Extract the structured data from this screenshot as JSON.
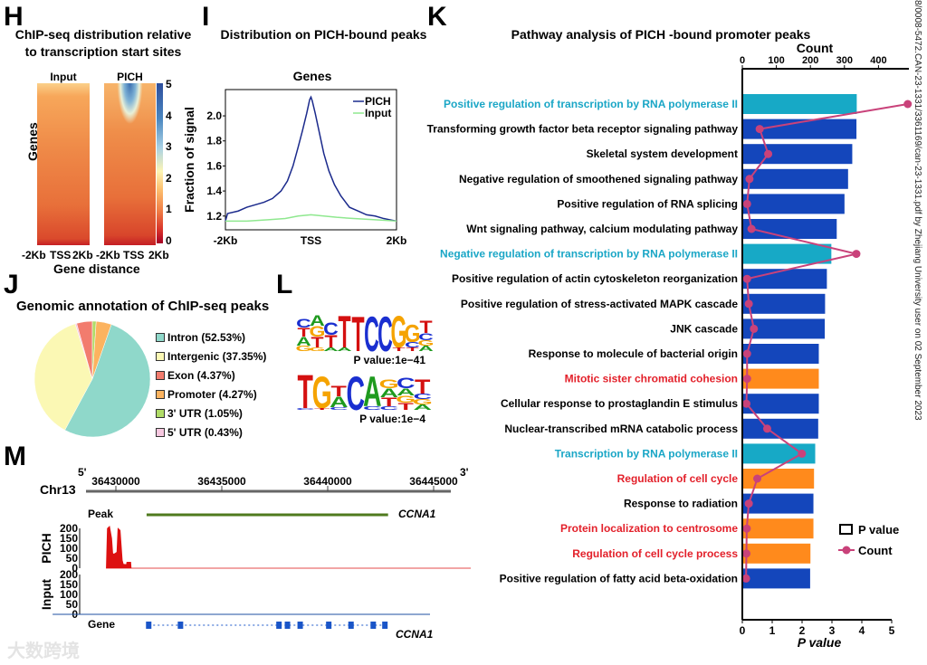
{
  "panels": {
    "H": "H",
    "I": "I",
    "J": "J",
    "K": "K",
    "L": "L",
    "M": "M"
  },
  "H": {
    "title1": "ChIP-seq distribution  relative",
    "title2": "to transcription start sites",
    "col_input": "Input",
    "col_pich": "PICH",
    "ylabel": "Genes",
    "xlabel": "Gene distance",
    "xticks": [
      "-2Kb",
      "TSS",
      "2Kb"
    ],
    "colorbar_ticks": [
      "5",
      "4",
      "3",
      "2",
      "1",
      "0"
    ]
  },
  "watermark": "8/0008-5472.CAN-23-1331/3361169/can-23-1331.pdf by Zhejiang University user on 02 September 2023",
  "logo_watermark": "大数跨境",
  "J": {
    "title": "Genomic annotation of ChIP-seq peaks"
  },
  "L": {
    "motifs": [
      {
        "pvalue": "P value:1e−41",
        "cols": [
          [
            [
              "C",
              0.25
            ],
            [
              "T",
              0.25
            ],
            [
              "A",
              0.25
            ],
            [
              "G",
              0.15
            ]
          ],
          [
            [
              "A",
              0.3
            ],
            [
              "G",
              0.3
            ],
            [
              "T",
              0.3
            ],
            [
              "G",
              0.1
            ]
          ],
          [
            [
              "C",
              0.35
            ],
            [
              "T",
              0.35
            ],
            [
              "A",
              0.1
            ]
          ],
          [
            [
              "T",
              0.9
            ],
            [
              "A",
              0.1
            ]
          ],
          [
            [
              "T",
              1
            ]
          ],
          [
            [
              "C",
              1
            ]
          ],
          [
            [
              "C",
              1
            ]
          ],
          [
            [
              "G",
              0.9
            ],
            [
              "T",
              0.1
            ]
          ],
          [
            [
              "G",
              0.5
            ],
            [
              "C",
              0.15
            ],
            [
              "T",
              0.1
            ]
          ],
          [
            [
              "T",
              0.35
            ],
            [
              "C",
              0.2
            ],
            [
              "G",
              0.15
            ],
            [
              "A",
              0.15
            ]
          ]
        ]
      },
      {
        "pvalue": "P value:1e−4",
        "cols": [
          [
            [
              "T",
              0.95
            ],
            [
              "C",
              0.05
            ]
          ],
          [
            [
              "G",
              0.9
            ],
            [
              "T",
              0.05
            ]
          ],
          [
            [
              "T",
              0.3
            ],
            [
              "A",
              0.3
            ],
            [
              "C",
              0.08
            ]
          ],
          [
            [
              "C",
              0.95
            ]
          ],
          [
            [
              "A",
              0.85
            ],
            [
              "C",
              0.1
            ]
          ],
          [
            [
              "G",
              0.25
            ],
            [
              "A",
              0.25
            ],
            [
              "T",
              0.25
            ],
            [
              "C",
              0.1
            ]
          ],
          [
            [
              "C",
              0.3
            ],
            [
              "A",
              0.2
            ],
            [
              "G",
              0.2
            ],
            [
              "T",
              0.2
            ]
          ],
          [
            [
              "T",
              0.4
            ],
            [
              "C",
              0.15
            ],
            [
              "G",
              0.15
            ],
            [
              "A",
              0.15
            ]
          ]
        ]
      }
    ]
  },
  "M": {
    "chrom": "Chr13",
    "five": "5'",
    "three": "3'",
    "peak_label": "Peak",
    "gene_label": "Gene",
    "gene_name": "CCNA1",
    "pich_label": "PICH",
    "input_label": "Input",
    "yticks": [
      "200",
      "150",
      "100",
      "50",
      "0"
    ]
  },
  "colors": {
    "pich": "#1b2a8c",
    "input": "#8fe88f",
    "teal": "#17a9c6",
    "blue": "#1446bb",
    "orange": "#ff8a1c",
    "red_text": "#e3202a",
    "teal_text": "#1aa6c6",
    "count": "#c9427a",
    "peak": "#4f7a1e",
    "signal": "#dd1010",
    "gene": "#1a55c8"
  },
  "chart_data": [
    {
      "id": "I",
      "type": "line",
      "title": "Distribution on PICH-bound peaks",
      "subtitle": "Genes",
      "xlabel": "",
      "ylabel": "Fraction of signal",
      "xticks": [
        "-2Kb",
        "TSS",
        "2Kb"
      ],
      "xlim": [
        -2000,
        2000
      ],
      "ylim": [
        1.09,
        2.21
      ],
      "yticks": [
        1.2,
        1.4,
        1.6,
        1.8,
        2.0
      ],
      "legend": "top-right",
      "series": [
        {
          "name": "PICH",
          "x": [
            -2000,
            -1950,
            -1700,
            -1500,
            -1300,
            -1100,
            -900,
            -700,
            -550,
            -420,
            -300,
            -200,
            -100,
            -30,
            0,
            30,
            100,
            200,
            300,
            420,
            550,
            700,
            900,
            1100,
            1300,
            1500,
            1700,
            1850,
            2000
          ],
          "y": [
            1.16,
            1.22,
            1.24,
            1.27,
            1.29,
            1.31,
            1.34,
            1.4,
            1.48,
            1.6,
            1.75,
            1.88,
            2.02,
            2.13,
            2.15,
            2.12,
            2.02,
            1.86,
            1.7,
            1.56,
            1.45,
            1.36,
            1.27,
            1.24,
            1.21,
            1.2,
            1.18,
            1.17,
            1.16
          ]
        },
        {
          "name": "Input",
          "x": [
            -2000,
            -1500,
            -1000,
            -600,
            -300,
            0,
            300,
            600,
            1000,
            1500,
            2000
          ],
          "y": [
            1.16,
            1.16,
            1.17,
            1.18,
            1.2,
            1.21,
            1.2,
            1.19,
            1.18,
            1.17,
            1.16
          ]
        }
      ]
    },
    {
      "id": "H",
      "type": "heatmap",
      "columns": [
        "Input",
        "PICH"
      ],
      "x": [
        "-2Kb",
        "TSS",
        "2Kb"
      ],
      "colorbar_range": [
        0,
        5
      ]
    },
    {
      "id": "J",
      "type": "pie",
      "labels": [
        "Intron (52.53%)",
        "Intergenic (37.35%)",
        "Exon (4.37%)",
        "Promoter (4.27%)",
        "3' UTR (1.05%)",
        "5' UTR (0.43%)"
      ],
      "categories": [
        "Intron",
        "Intergenic",
        "Exon",
        "Promoter",
        "3' UTR",
        "5' UTR"
      ],
      "values": [
        52.53,
        37.35,
        4.37,
        4.27,
        1.05,
        0.43
      ],
      "colors": [
        "#8fd8ca",
        "#fbf8b4",
        "#f27c6e",
        "#fcb35f",
        "#b0dc67",
        "#f7c8e0"
      ],
      "legend": "right"
    },
    {
      "id": "K",
      "type": "bar",
      "title": "Pathway analysis of PICH -bound promoter peaks",
      "xlabel": "P value",
      "x2label": "Count",
      "xlim": [
        0,
        5
      ],
      "x2lim": [
        0,
        480
      ],
      "xticks": [
        0,
        1,
        2,
        3,
        4,
        5
      ],
      "x2ticks": [
        0,
        100,
        200,
        300,
        400
      ],
      "legend": "bottom-right",
      "legend_entries": [
        "P value",
        "Count"
      ],
      "categories": [
        "Positive regulation of transcription by RNA polymerase II",
        "Transforming growth factor beta receptor signaling pathway",
        "Skeletal system development",
        "Negative regulation of smoothened signaling pathway",
        "Positive regulation of RNA splicing",
        "Wnt signaling pathway, calcium modulating pathway",
        "Negative regulation of transcription by RNA polymerase II",
        "Positive regulation of actin cytoskeleton reorganization",
        "Positive regulation of stress-activated MAPK cascade",
        "JNK cascade",
        "Response to molecule of bacterial origin",
        "Mitotic sister chromatid cohesion",
        "Cellular response to prostaglandin E stimulus",
        "Nuclear-transcribed mRNA catabolic process",
        "Transcription by RNA polymerase II",
        "Regulation of cell cycle",
        "Response to radiation",
        "Protein localization to centrosome",
        "Regulation of cell cycle process",
        "Positive regulation of fatty acid beta-oxidation"
      ],
      "groups": [
        "teal",
        "blue",
        "blue",
        "blue",
        "blue",
        "blue",
        "teal",
        "blue",
        "blue",
        "blue",
        "blue",
        "orange",
        "blue",
        "blue",
        "teal",
        "orange",
        "blue",
        "orange",
        "orange",
        "blue"
      ],
      "series": [
        {
          "name": "P value",
          "values": [
            3.83,
            3.82,
            3.68,
            3.54,
            3.42,
            3.16,
            2.98,
            2.83,
            2.77,
            2.76,
            2.56,
            2.56,
            2.56,
            2.54,
            2.44,
            2.4,
            2.38,
            2.38,
            2.28,
            2.27
          ]
        },
        {
          "name": "Count",
          "values": [
            486,
            51,
            76,
            21,
            14,
            27,
            335,
            14,
            19,
            34,
            14,
            14,
            12,
            73,
            175,
            44,
            19,
            13,
            12,
            11
          ]
        }
      ]
    },
    {
      "id": "M",
      "type": "area",
      "xlabel": "Chr13",
      "xticks": [
        36430000,
        36435000,
        36440000,
        36445000
      ],
      "xlim": [
        36426800,
        36447800
      ],
      "ylim": [
        0,
        220
      ],
      "peak": [
        36431450,
        36442850
      ],
      "pich_signal": {
        "x": [
          36429550,
          36429600,
          36429700,
          36429800,
          36429850,
          36429900,
          36430050,
          36430100,
          36430200,
          36430300,
          36430350,
          36430500,
          36430520,
          36430650,
          36430700,
          36430720,
          36447200
        ],
        "y": [
          0,
          200,
          210,
          150,
          75,
          70,
          80,
          200,
          190,
          40,
          20,
          18,
          30,
          30,
          30,
          0,
          0
        ]
      },
      "exons": [
        36431550,
        36433050,
        36437700,
        36438100,
        36438700,
        36440050,
        36441100,
        36442150,
        36442700
      ]
    }
  ]
}
